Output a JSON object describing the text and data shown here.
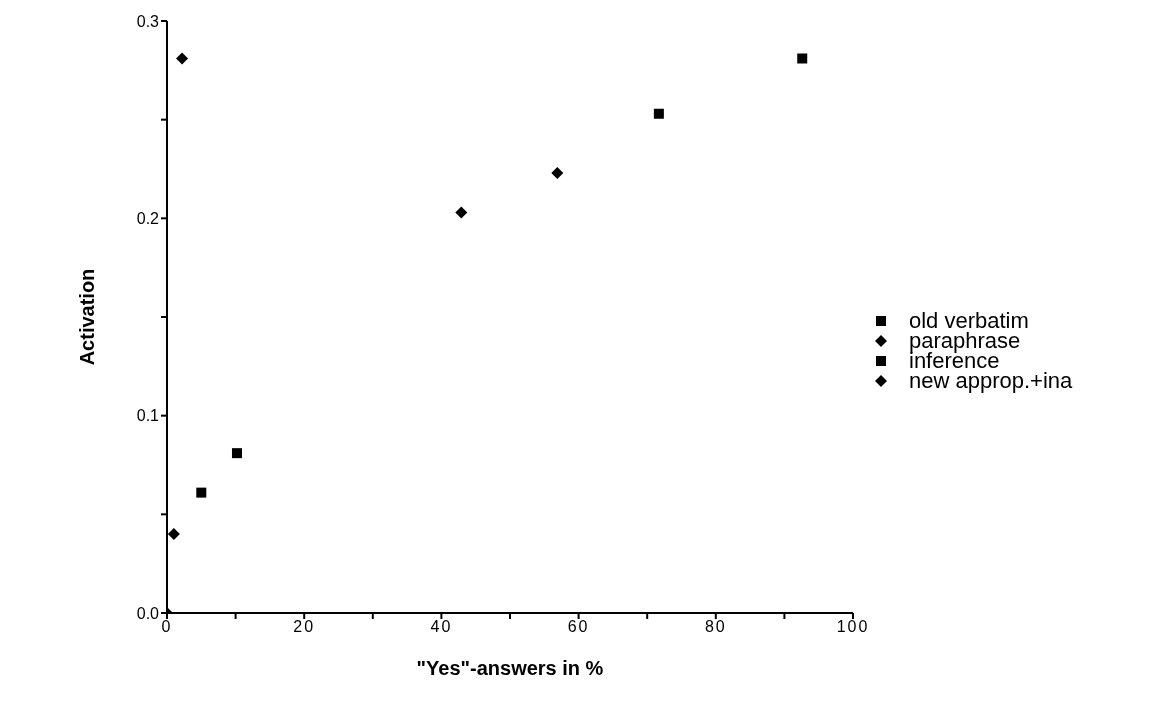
{
  "chart_data": {
    "type": "scatter",
    "xlabel": "\"Yes\"-answers in %",
    "ylabel": "Activation",
    "xlim": [
      0,
      100
    ],
    "xticks": [
      0,
      {
        "value": 10,
        "label": null
      },
      20,
      {
        "value": 30,
        "label": null
      },
      40,
      {
        "value": 50,
        "label": null
      },
      60,
      {
        "value": 70,
        "label": null
      },
      80,
      {
        "value": 90,
        "label": null
      },
      100
    ],
    "ylim": [
      0,
      0.3
    ],
    "yticks": [
      {
        "value": 0,
        "label": "0.0"
      },
      {
        "value": 0.05,
        "label": null
      },
      0.1,
      {
        "value": 0.15,
        "label": null
      },
      0.2,
      {
        "value": 0.25,
        "label": null
      },
      0.3
    ],
    "grid": false,
    "legend": "right",
    "series": [
      {
        "name": "old verbatim",
        "color": "#000000",
        "marker": "square",
        "x": [
          71.7,
          92.6
        ],
        "values": [
          0.253,
          0.281
        ]
      },
      {
        "name": "paraphrase",
        "color": "#000000",
        "marker": "diamond",
        "x": [
          42.9,
          56.9
        ],
        "values": [
          0.203,
          0.223
        ]
      },
      {
        "name": "inference",
        "color": "#000000",
        "marker": "square",
        "x": [
          5,
          10.2
        ],
        "values": [
          0.061,
          0.081
        ]
      },
      {
        "name": "new approp.+ina",
        "color": "#000000",
        "marker": "diamond",
        "x": [
          0,
          1,
          2.2
        ],
        "values": [
          0,
          0.04,
          0.281
        ]
      }
    ]
  }
}
